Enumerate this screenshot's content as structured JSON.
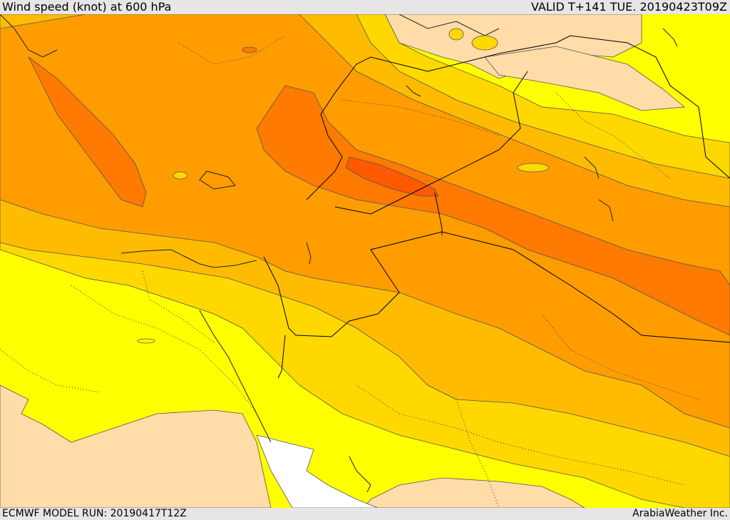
{
  "header": {
    "title": "Wind speed (knot) at 600 hPa",
    "valid": "VALID T+141 TUE. 20190423T09Z"
  },
  "footer": {
    "model_run": "ECMWF MODEL RUN: 20190417T12Z",
    "credit": "ArabiaWeather Inc."
  },
  "map": {
    "variable": "wind speed",
    "level": "600 hPa",
    "unit": "knot",
    "colors": {
      "calm": "#ffdca8",
      "yellow": "#ffff00",
      "light_orange": "#ffd800",
      "orange": "#ffbb00",
      "deep_orange": "#ff9d00",
      "dark_orange": "#ff7a00",
      "red_orange": "#ff5a00",
      "missing": "#ffffff",
      "contour": "#555555",
      "border": "#000000"
    }
  }
}
